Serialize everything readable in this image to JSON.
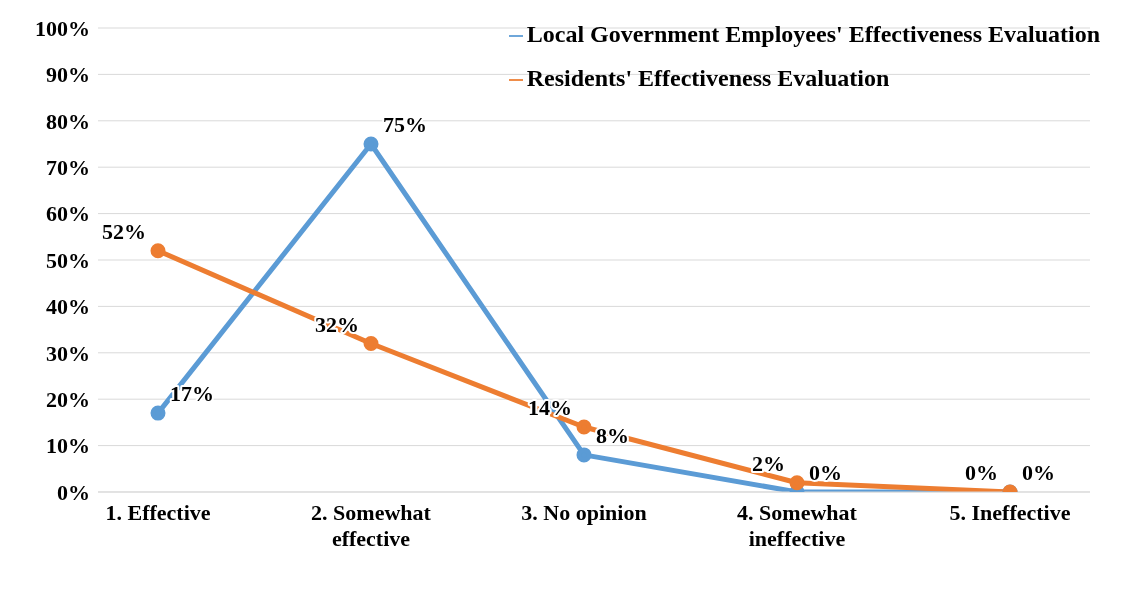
{
  "chart_data": {
    "type": "line",
    "categories": [
      "1. Effective",
      "2. Somewhat effective",
      "3. No opinion",
      "4. Somewhat ineffective",
      "5. Ineffective"
    ],
    "series": [
      {
        "name": "Local Government Employees' Effectiveness Evaluation",
        "color": "#5b9bd5",
        "values": [
          17,
          75,
          8,
          0,
          0
        ],
        "value_labels": [
          "17%",
          "75%",
          "8%",
          "0%",
          "0%"
        ]
      },
      {
        "name": "Residents' Effectiveness Evaluation",
        "color": "#ed7d31",
        "values": [
          52,
          32,
          14,
          2,
          0
        ],
        "value_labels": [
          "52%",
          "32%",
          "14%",
          "2%",
          "0%"
        ]
      }
    ],
    "ylim": [
      0,
      100
    ],
    "yticks": [
      {
        "value": 0,
        "label": "0%"
      },
      {
        "value": 10,
        "label": "10%"
      },
      {
        "value": 20,
        "label": "20%"
      },
      {
        "value": 30,
        "label": "30%"
      },
      {
        "value": 40,
        "label": "40%"
      },
      {
        "value": 50,
        "label": "50%"
      },
      {
        "value": 60,
        "label": "60%"
      },
      {
        "value": 70,
        "label": "70%"
      },
      {
        "value": 80,
        "label": "80%"
      },
      {
        "value": 90,
        "label": "90%"
      },
      {
        "value": 100,
        "label": "100%"
      }
    ],
    "grid": "y",
    "legend": "top right",
    "marker": "circle",
    "line_style": "solid"
  }
}
